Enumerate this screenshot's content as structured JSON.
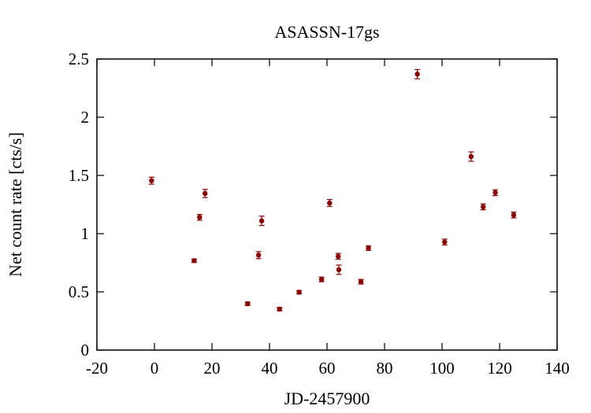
{
  "chart_data": {
    "type": "scatter",
    "title": "ASASSN-17gs",
    "xlabel": "JD-2457900",
    "ylabel": "Net count rate [cts/s]",
    "xlim": [
      -20,
      140
    ],
    "ylim": [
      0,
      2.5
    ],
    "xticks": [
      -20,
      0,
      20,
      40,
      60,
      80,
      100,
      120,
      140
    ],
    "yticks": [
      0,
      0.5,
      1,
      1.5,
      2,
      2.5
    ],
    "xtick_labels": [
      "-20",
      "0",
      "20",
      "40",
      "60",
      "80",
      "100",
      "120",
      "140"
    ],
    "ytick_labels": [
      "0",
      "0.5",
      "1",
      "1.5",
      "2",
      "2.5"
    ],
    "grid": false,
    "legend": false,
    "marker_color": "#8b0000",
    "series": [
      {
        "points": [
          {
            "x": -1.0,
            "y": 1.455,
            "err": 0.03
          },
          {
            "x": 13.8,
            "y": 0.768,
            "err": 0.015
          },
          {
            "x": 15.7,
            "y": 1.14,
            "err": 0.025
          },
          {
            "x": 17.6,
            "y": 1.345,
            "err": 0.035
          },
          {
            "x": 32.4,
            "y": 0.398,
            "err": 0.015
          },
          {
            "x": 36.2,
            "y": 0.815,
            "err": 0.03
          },
          {
            "x": 37.3,
            "y": 1.11,
            "err": 0.04
          },
          {
            "x": 43.5,
            "y": 0.352,
            "err": 0.015
          },
          {
            "x": 50.3,
            "y": 0.497,
            "err": 0.015
          },
          {
            "x": 58.1,
            "y": 0.607,
            "err": 0.02
          },
          {
            "x": 60.9,
            "y": 1.263,
            "err": 0.03
          },
          {
            "x": 63.9,
            "y": 0.805,
            "err": 0.025
          },
          {
            "x": 64.1,
            "y": 0.69,
            "err": 0.04
          },
          {
            "x": 71.8,
            "y": 0.587,
            "err": 0.02
          },
          {
            "x": 74.4,
            "y": 0.876,
            "err": 0.02
          },
          {
            "x": 91.4,
            "y": 2.37,
            "err": 0.04
          },
          {
            "x": 100.9,
            "y": 0.928,
            "err": 0.025
          },
          {
            "x": 110.1,
            "y": 1.662,
            "err": 0.04
          },
          {
            "x": 114.3,
            "y": 1.23,
            "err": 0.025
          },
          {
            "x": 118.5,
            "y": 1.352,
            "err": 0.025
          },
          {
            "x": 124.9,
            "y": 1.16,
            "err": 0.025
          }
        ]
      }
    ]
  }
}
